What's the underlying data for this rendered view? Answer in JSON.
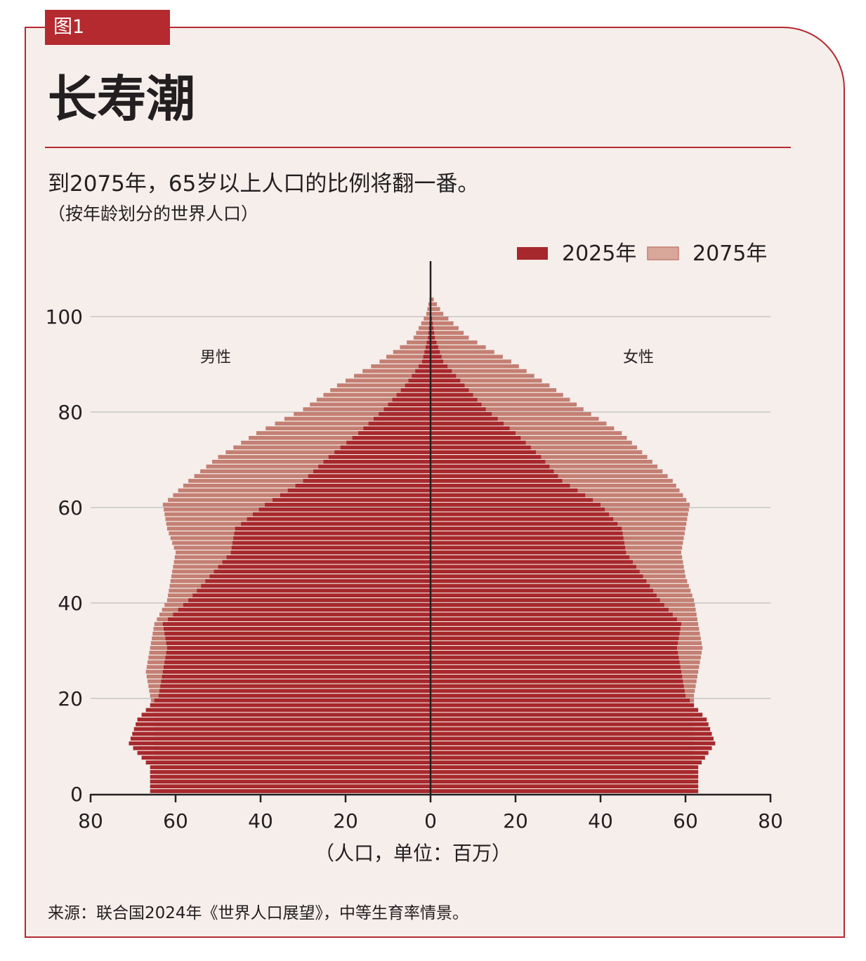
{
  "figure": {
    "tag": "图1",
    "title": "长寿潮",
    "subtitle": "到2075年，65岁以上人口的比例将翻一番。",
    "subnote": "（按年龄划分的世界人口）",
    "source": "来源：联合国2024年《世界人口展望》，中等生育率情景。"
  },
  "colors": {
    "accent": "#b42a2f",
    "y2025": "#a7282c",
    "y2075": "#c47f73",
    "legend2075": "#d9a79a"
  },
  "chart_data": {
    "type": "bar",
    "orientation": "horizontal-population-pyramid",
    "xlabel": "（人口，单位：百万）",
    "xlim": [
      -80,
      80
    ],
    "ylim": [
      0,
      100
    ],
    "yticks": [
      0,
      20,
      40,
      60,
      80,
      100
    ],
    "xticks": [
      -80,
      -60,
      -40,
      -20,
      0,
      20,
      40,
      60,
      80
    ],
    "xtick_labels": [
      "80",
      "60",
      "40",
      "20",
      "0",
      "20",
      "40",
      "60",
      "80"
    ],
    "legend": [
      "2025年",
      "2075年"
    ],
    "legend_position": "top-right",
    "side_labels": {
      "left": "男性",
      "right": "女性"
    },
    "age_anchors": [
      0,
      5,
      10,
      15,
      20,
      25,
      30,
      35,
      40,
      45,
      50,
      55,
      60,
      65,
      70,
      75,
      80,
      85,
      90,
      95,
      100,
      104
    ],
    "series": [
      {
        "name": "2025年",
        "sex": "男性",
        "values": [
          66,
          66,
          71,
          69,
          64,
          63,
          62,
          63,
          57,
          52,
          47,
          46,
          39,
          30,
          24,
          17,
          11,
          6,
          2,
          0.6,
          0.1,
          0
        ]
      },
      {
        "name": "2025年",
        "sex": "女性",
        "values": [
          63,
          63,
          67,
          65,
          60,
          59,
          58,
          59,
          54,
          50,
          46,
          45,
          40,
          31,
          26,
          20,
          13,
          8,
          3,
          1,
          0.2,
          0
        ]
      },
      {
        "name": "2075年",
        "sex": "男性",
        "values": [
          64,
          65,
          65,
          65,
          66,
          67,
          66,
          65,
          62,
          61,
          60,
          62,
          63,
          57,
          50,
          41,
          30,
          22,
          12,
          4,
          1,
          0
        ]
      },
      {
        "name": "2075年",
        "sex": "女性",
        "values": [
          62,
          62,
          62,
          62,
          62,
          63,
          64,
          63,
          62,
          60,
          59,
          60,
          61,
          57,
          51,
          45,
          36,
          28,
          19,
          9,
          3,
          0
        ]
      }
    ]
  }
}
